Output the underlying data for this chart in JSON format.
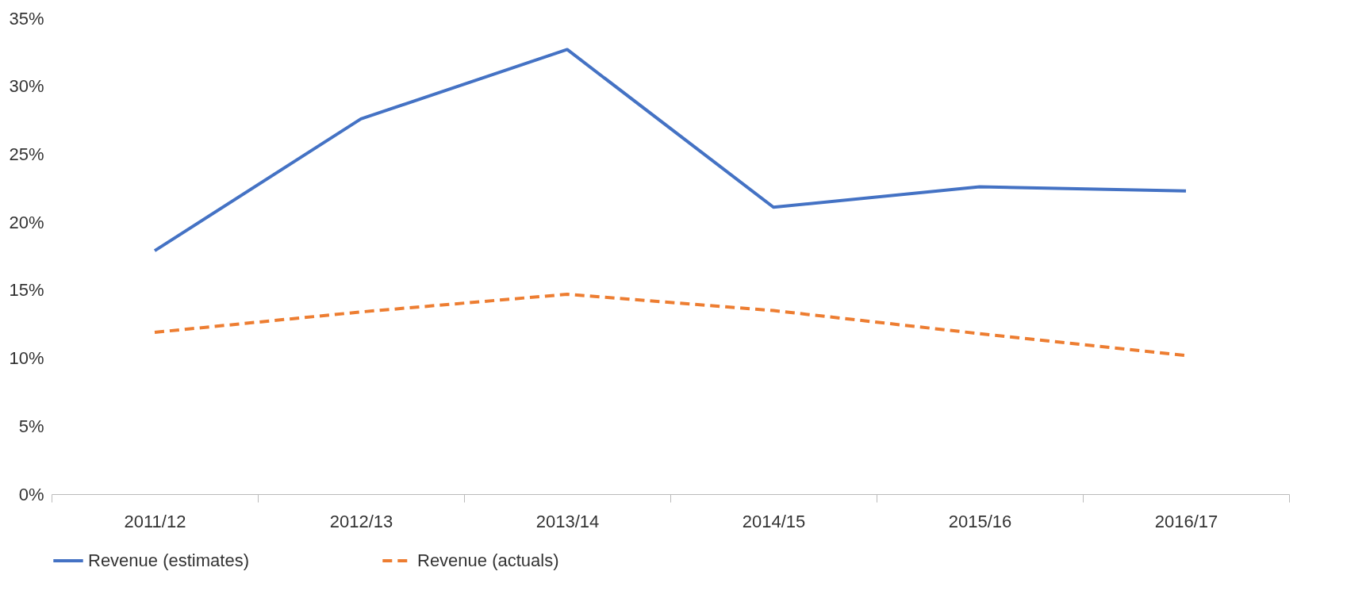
{
  "chart_data": {
    "type": "line",
    "categories": [
      "2011/12",
      "2012/13",
      "2013/14",
      "2014/15",
      "2015/16",
      "2016/17"
    ],
    "series": [
      {
        "name": "Revenue (estimates)",
        "color": "#4472c4",
        "line_style": "solid",
        "values": [
          17.9,
          27.6,
          32.7,
          21.1,
          22.6,
          22.3
        ]
      },
      {
        "name": "Revenue (actuals)",
        "color": "#ed7d31",
        "line_style": "dashed",
        "values": [
          11.9,
          13.4,
          14.7,
          13.5,
          11.8,
          10.2
        ]
      }
    ],
    "ylim": [
      0,
      35
    ],
    "yticks": [
      {
        "value": 0,
        "label": "0%"
      },
      {
        "value": 5,
        "label": "5%"
      },
      {
        "value": 10,
        "label": "10%"
      },
      {
        "value": 15,
        "label": "15%"
      },
      {
        "value": 20,
        "label": "20%"
      },
      {
        "value": 25,
        "label": "25%"
      },
      {
        "value": 30,
        "label": "30%"
      },
      {
        "value": 35,
        "label": "35%"
      }
    ],
    "grid": false,
    "legend": "bottom",
    "marker": "none"
  }
}
